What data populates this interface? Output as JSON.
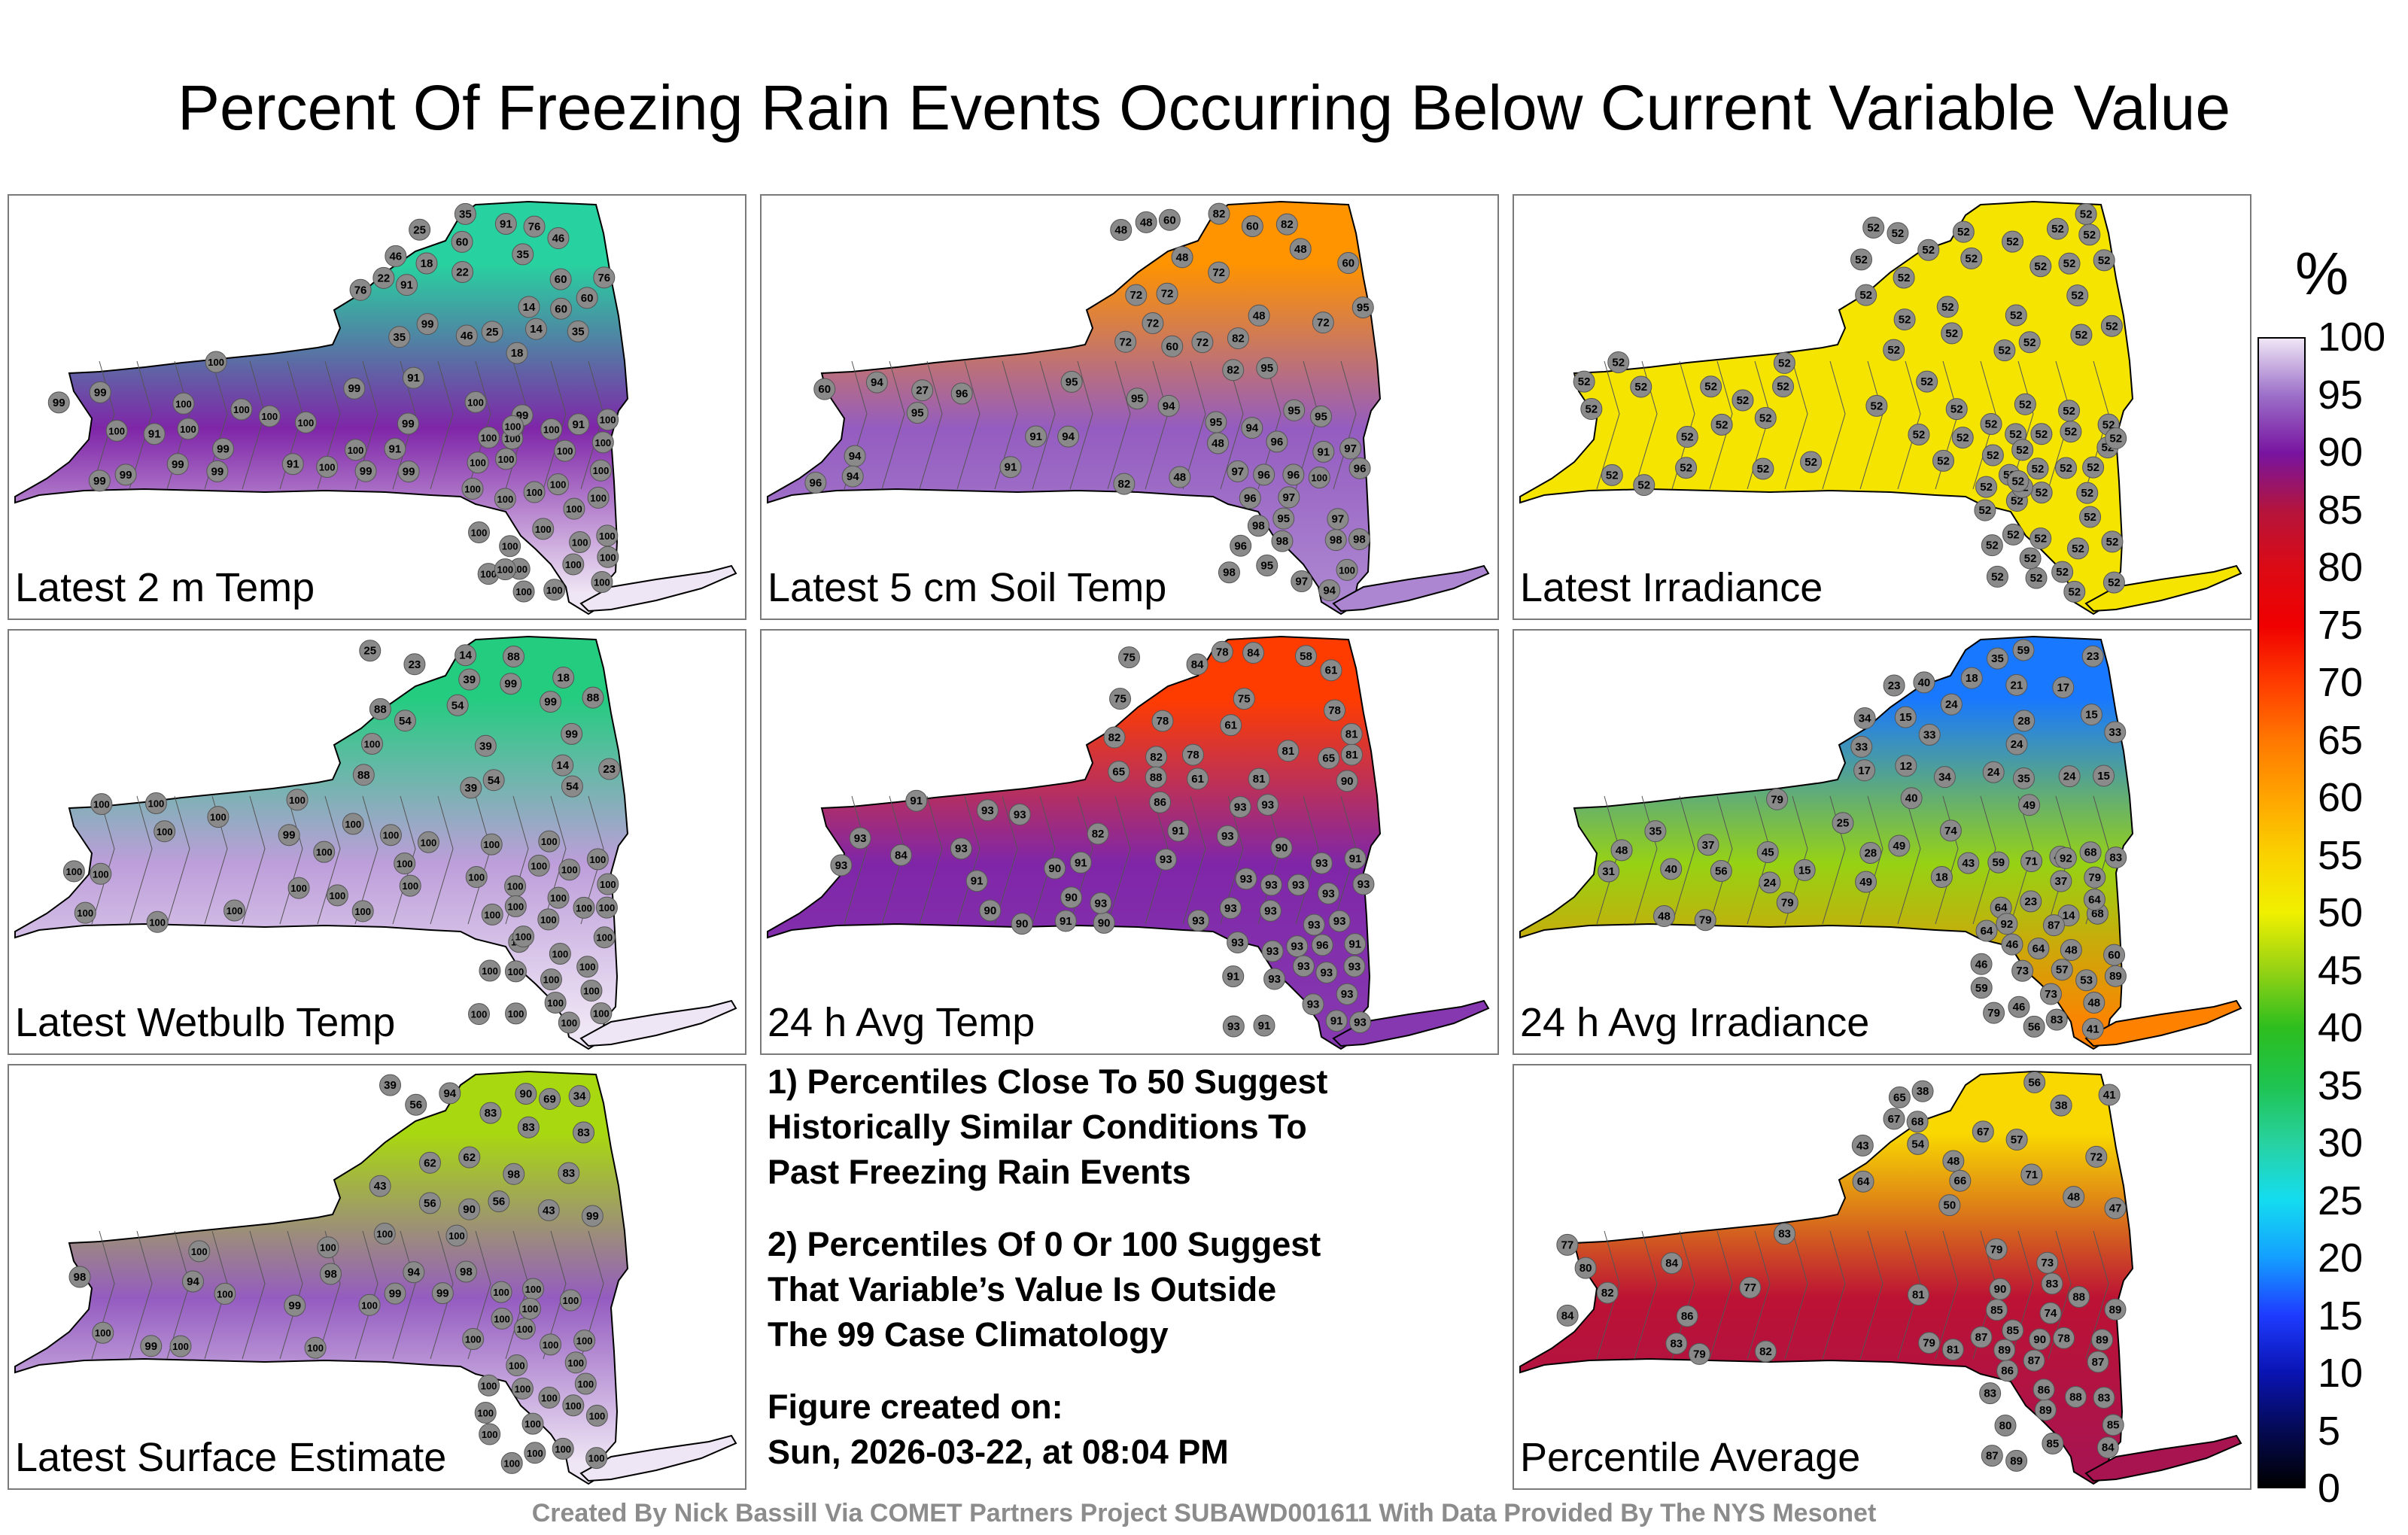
{
  "title": "Percent Of Freezing Rain Events Occurring Below Current Variable Value",
  "colorbar": {
    "unit": "%",
    "ticks": [
      "0",
      "5",
      "10",
      "15",
      "20",
      "25",
      "30",
      "35",
      "40",
      "45",
      "50",
      "55",
      "60",
      "65",
      "70",
      "75",
      "80",
      "85",
      "90",
      "95",
      "100"
    ],
    "stops": [
      {
        "v": 0,
        "c": "#000000"
      },
      {
        "v": 5,
        "c": "#050a55"
      },
      {
        "v": 10,
        "c": "#0a14b4"
      },
      {
        "v": 15,
        "c": "#1e3cff"
      },
      {
        "v": 20,
        "c": "#14a0ff"
      },
      {
        "v": 25,
        "c": "#14dcf0"
      },
      {
        "v": 30,
        "c": "#28d2a0"
      },
      {
        "v": 35,
        "c": "#1ec350"
      },
      {
        "v": 40,
        "c": "#2dbe1e"
      },
      {
        "v": 45,
        "c": "#96d214"
      },
      {
        "v": 50,
        "c": "#f0f000"
      },
      {
        "v": 55,
        "c": "#fad200"
      },
      {
        "v": 60,
        "c": "#ffa500"
      },
      {
        "v": 65,
        "c": "#ff7800"
      },
      {
        "v": 70,
        "c": "#ff3c00"
      },
      {
        "v": 75,
        "c": "#f00000"
      },
      {
        "v": 80,
        "c": "#dc0a14"
      },
      {
        "v": 85,
        "c": "#b4143c"
      },
      {
        "v": 90,
        "c": "#7814a0"
      },
      {
        "v": 95,
        "c": "#9b6ec8"
      },
      {
        "v": 100,
        "c": "#efe6f5"
      }
    ]
  },
  "chart_data": [
    {
      "type": "station-map",
      "label": "Latest 2 m Temp",
      "fill": [
        [
          "n",
          30
        ],
        [
          "w",
          91
        ],
        [
          "s",
          100
        ]
      ],
      "values": [
        35,
        18,
        14,
        35,
        14,
        46,
        35,
        22,
        18,
        22,
        46,
        76,
        46,
        25,
        76,
        91,
        35,
        25,
        60,
        60,
        76,
        91,
        60,
        60,
        99,
        91,
        91,
        99,
        100,
        99,
        99,
        91,
        99,
        99,
        100,
        99,
        100,
        99,
        100,
        100,
        91,
        99,
        91,
        99,
        99,
        100,
        100,
        100,
        100,
        100,
        100,
        100,
        99,
        99,
        100,
        100,
        100,
        100,
        100,
        100,
        100,
        100,
        100,
        100,
        100,
        100,
        100,
        100,
        100,
        100,
        100,
        100,
        100,
        100,
        100,
        100,
        100,
        100,
        100,
        100,
        100
      ]
    },
    {
      "type": "station-map",
      "label": "Latest 5 cm Soil Temp",
      "fill": [
        [
          "n",
          62
        ],
        [
          "w",
          94
        ],
        [
          "s",
          96
        ]
      ],
      "values": [
        60,
        72,
        60,
        48,
        72,
        72,
        72,
        60,
        95,
        48,
        82,
        72,
        48,
        82,
        48,
        72,
        82,
        72,
        60,
        48,
        48,
        60,
        48,
        27,
        95,
        96,
        95,
        94,
        95,
        94,
        95,
        94,
        82,
        96,
        95,
        91,
        95,
        94,
        96,
        82,
        91,
        94,
        95,
        97,
        91,
        98,
        95,
        94,
        95,
        97,
        96,
        96,
        96,
        97,
        94,
        97,
        96,
        98,
        96,
        97,
        98,
        98,
        100,
        100,
        98
      ]
    },
    {
      "type": "station-map",
      "label": "Latest Irradiance",
      "fill": [
        [
          "n",
          52
        ],
        [
          "w",
          52
        ],
        [
          "s",
          52
        ]
      ],
      "values": [
        52,
        52,
        52,
        52,
        52,
        52,
        52,
        52,
        52,
        52,
        52,
        52,
        52,
        52,
        52,
        52,
        52,
        52,
        52,
        52,
        52,
        52,
        52,
        52,
        52,
        52,
        52,
        52,
        52,
        52,
        52,
        52,
        52,
        52,
        52,
        52,
        52,
        52,
        52,
        52,
        52,
        52,
        52,
        52,
        52,
        52,
        52,
        52,
        52,
        52,
        52,
        52,
        52,
        52,
        52,
        52,
        52,
        52,
        52,
        52,
        52,
        52,
        52,
        52,
        52,
        52,
        52,
        52,
        52,
        52,
        52,
        52,
        52,
        52,
        52,
        52,
        52,
        52,
        52,
        52,
        52
      ]
    },
    {
      "type": "station-map",
      "label": "Latest Wetbulb Temp",
      "fill": [
        [
          "n",
          32
        ],
        [
          "w",
          97
        ],
        [
          "s",
          100
        ]
      ],
      "values": [
        39,
        14,
        14,
        39,
        39,
        54,
        23,
        18,
        23,
        54,
        88,
        54,
        25,
        88,
        88,
        88,
        99,
        99,
        54,
        99,
        100,
        100,
        100,
        100,
        100,
        100,
        100,
        99,
        100,
        100,
        100,
        100,
        100,
        100,
        100,
        100,
        100,
        100,
        100,
        100,
        100,
        100,
        100,
        100,
        100,
        100,
        100,
        100,
        100,
        100,
        100,
        100,
        100,
        100,
        100,
        100,
        100,
        100,
        100,
        100,
        100,
        100,
        100,
        100,
        100,
        100,
        100,
        100,
        100
      ]
    },
    {
      "type": "station-map",
      "label": "24 h Avg Temp",
      "fill": [
        [
          "n",
          70
        ],
        [
          "w",
          91
        ],
        [
          "s",
          92
        ]
      ],
      "values": [
        65,
        61,
        58,
        75,
        75,
        61,
        61,
        78,
        78,
        81,
        75,
        65,
        81,
        82,
        84,
        81,
        78,
        82,
        81,
        78,
        88,
        84,
        90,
        82,
        84,
        86,
        90,
        90,
        91,
        91,
        93,
        93,
        93,
        93,
        90,
        93,
        93,
        90,
        91,
        91,
        91,
        93,
        93,
        90,
        93,
        93,
        93,
        90,
        93,
        93,
        91,
        93,
        91,
        93,
        93,
        93,
        91,
        93,
        91,
        93,
        93,
        93,
        93,
        91,
        93,
        93,
        93,
        93,
        93,
        93,
        96,
        93,
        93,
        93,
        93
      ]
    },
    {
      "type": "station-map",
      "label": "24 h Avg Irradiance",
      "fill": [
        [
          "n",
          18
        ],
        [
          "w",
          45
        ],
        [
          "s",
          64
        ]
      ],
      "values": [
        28,
        33,
        35,
        23,
        24,
        18,
        40,
        24,
        15,
        21,
        33,
        24,
        34,
        15,
        24,
        17,
        35,
        12,
        15,
        17,
        33,
        23,
        34,
        59,
        48,
        14,
        15,
        40,
        37,
        49,
        31,
        35,
        25,
        28,
        23,
        24,
        18,
        37,
        74,
        49,
        40,
        49,
        56,
        40,
        48,
        43,
        45,
        79,
        64,
        79,
        71,
        79,
        48,
        46,
        57,
        41,
        60,
        59,
        46,
        83,
        79,
        83,
        73,
        48,
        64,
        68,
        59,
        46,
        64,
        53,
        79,
        56,
        68,
        89,
        92,
        73,
        64,
        92,
        87
      ]
    },
    {
      "type": "station-map",
      "label": "Latest Surface Estimate",
      "fill": [
        [
          "n",
          46
        ],
        [
          "w",
          94
        ],
        [
          "s",
          100
        ]
      ],
      "values": [
        56,
        34,
        56,
        43,
        62,
        39,
        43,
        83,
        62,
        83,
        56,
        83,
        69,
        90,
        83,
        90,
        99,
        94,
        98,
        99,
        98,
        99,
        98,
        100,
        99,
        98,
        100,
        94,
        99,
        94,
        100,
        100,
        100,
        100,
        100,
        100,
        100,
        100,
        100,
        100,
        100,
        100,
        100,
        100,
        100,
        100,
        100,
        100,
        100,
        100,
        100,
        100,
        100,
        100,
        100,
        100,
        100,
        100,
        100,
        100,
        100
      ]
    },
    {
      "type": "station-map",
      "label": "Percentile Average",
      "fill": [
        [
          "n",
          54
        ],
        [
          "w",
          84
        ],
        [
          "s",
          86
        ]
      ],
      "values": [
        48,
        41,
        38,
        47,
        50,
        38,
        57,
        67,
        43,
        48,
        71,
        56,
        65,
        72,
        54,
        67,
        66,
        68,
        64,
        73,
        74,
        79,
        78,
        79,
        77,
        79,
        77,
        82,
        81,
        83,
        83,
        82,
        80,
        81,
        84,
        85,
        83,
        86,
        84,
        85,
        87,
        89,
        89,
        88,
        87,
        85,
        86,
        89,
        89,
        86,
        84,
        80,
        83,
        85,
        87,
        90,
        90,
        89,
        88,
        87,
        83
      ]
    }
  ],
  "notes": [
    "1) Percentiles Close To 50 Suggest\nHistorically Similar Conditions To\nPast Freezing Rain Events",
    "2) Percentiles Of 0 Or 100 Suggest\nThat Variable’s Value Is Outside\nThe 99 Case Climatology",
    "Figure created on:\nSun, 2026-03-22, at 08:04 PM"
  ],
  "credit": "Created By Nick Bassill Via COMET Partners Project SUBAWD001611 With Data Provided By The NYS Mesonet"
}
